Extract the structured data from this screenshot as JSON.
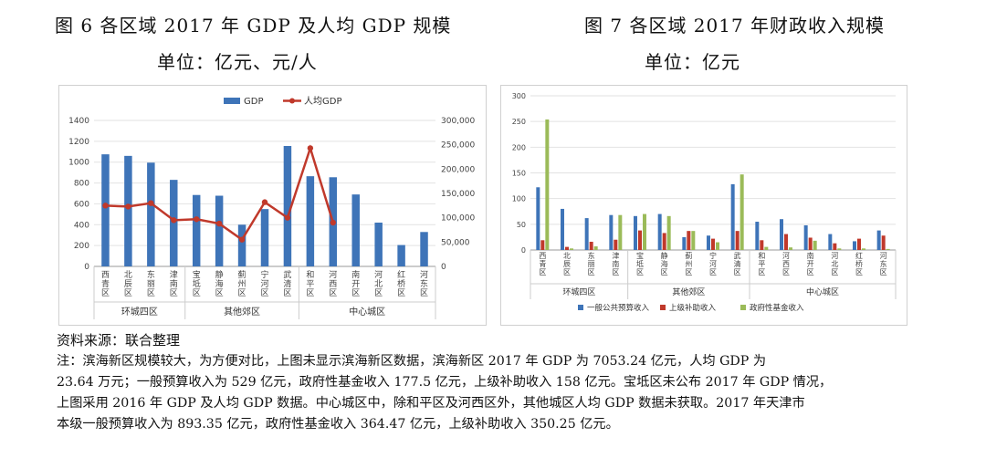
{
  "figures": {
    "left_title": "图 6 各区域 2017 年 GDP 及人均 GDP 规模",
    "left_unit": "单位：亿元、元/人",
    "right_title": "图 7 各区域 2017 年财政收入规模",
    "right_unit": "单位：亿元"
  },
  "chart_data": [
    {
      "type": "bar",
      "categories": [
        "西青区",
        "北辰区",
        "东丽区",
        "津南区",
        "宝坻区",
        "静海区",
        "蓟州区",
        "宁河区",
        "武清区",
        "和平区",
        "河西区",
        "南开区",
        "河北区",
        "红桥区",
        "河东区"
      ],
      "groups": [
        {
          "label": "环城四区",
          "categories": [
            "西青区",
            "北辰区",
            "东丽区",
            "津南区"
          ]
        },
        {
          "label": "其他郊区",
          "categories": [
            "宝坻区",
            "静海区",
            "蓟州区",
            "宁河区",
            "武清区"
          ]
        },
        {
          "label": "中心城区",
          "categories": [
            "和平区",
            "河西区",
            "南开区",
            "河北区",
            "红桥区",
            "河东区"
          ]
        }
      ],
      "series": [
        {
          "name": "GDP",
          "type": "bar",
          "axis": "left",
          "color": "#3e74b8",
          "values": [
            1075,
            1060,
            995,
            830,
            685,
            678,
            400,
            550,
            1155,
            865,
            855,
            690,
            420,
            205,
            330
          ]
        },
        {
          "name": "人均GDP",
          "type": "line",
          "axis": "right",
          "color": "#c0392b",
          "values": [
            125000,
            123000,
            130000,
            95000,
            97000,
            88000,
            55000,
            132000,
            100000,
            243000,
            90000,
            null,
            null,
            null,
            null
          ]
        }
      ],
      "ylim_left": [
        0,
        1400
      ],
      "yticks_left": [
        "0",
        "200",
        "400",
        "600",
        "800",
        "1000",
        "1200",
        "1400"
      ],
      "ylim_right": [
        0,
        300000
      ],
      "yticks_right": [
        "0",
        "50,000",
        "100,000",
        "150,000",
        "200,000",
        "250,000",
        "300,000"
      ],
      "legend_position": "top"
    },
    {
      "type": "bar",
      "categories": [
        "西青区",
        "北辰区",
        "东丽区",
        "津南区",
        "宝坻区",
        "静海区",
        "蓟州区",
        "宁河区",
        "武清区",
        "和平区",
        "河西区",
        "南开区",
        "河北区",
        "红桥区",
        "河东区"
      ],
      "groups": [
        {
          "label": "环城四区",
          "categories": [
            "西青区",
            "北辰区",
            "东丽区",
            "津南区"
          ]
        },
        {
          "label": "其他郊区",
          "categories": [
            "宝坻区",
            "静海区",
            "蓟州区",
            "宁河区",
            "武清区"
          ]
        },
        {
          "label": "中心城区",
          "categories": [
            "和平区",
            "河西区",
            "南开区",
            "河北区",
            "红桥区",
            "河东区"
          ]
        }
      ],
      "series": [
        {
          "name": "一般公共预算收入",
          "color": "#3e74b8",
          "values": [
            122,
            80,
            62,
            68,
            66,
            70,
            25,
            28,
            128,
            55,
            60,
            48,
            31,
            17,
            38
          ]
        },
        {
          "name": "上级补助收入",
          "color": "#c0392b",
          "values": [
            19,
            6,
            16,
            20,
            38,
            33,
            37,
            22,
            37,
            19,
            31,
            24,
            13,
            22,
            28
          ]
        },
        {
          "name": "政府性基金收入",
          "color": "#9bbb59",
          "values": [
            254,
            3,
            7,
            68,
            70,
            66,
            37,
            15,
            147,
            6,
            5,
            18,
            3,
            3,
            2
          ]
        }
      ],
      "ylim": [
        0,
        300
      ],
      "yticks": [
        "0",
        "50",
        "100",
        "150",
        "200",
        "250",
        "300"
      ],
      "legend_position": "bottom"
    }
  ],
  "source": "资料来源：联合整理",
  "notes": [
    "注：滨海新区规模较大，为方便对比，上图未显示滨海新区数据，滨海新区 2017 年 GDP 为 7053.24 亿元，人均 GDP 为",
    "23.64 万元；一般预算收入为 529 亿元，政府性基金收入 177.5 亿元，上级补助收入 158 亿元。宝坻区未公布 2017 年 GDP 情况，",
    "上图采用 2016 年 GDP 及人均 GDP 数据。中心城区中，除和平区及河西区外，其他城区人均 GDP 数据未获取。2017 年天津市",
    "本级一般预算收入为 893.35 亿元，政府性基金收入 364.47 亿元，上级补助收入 350.25 亿元。"
  ]
}
